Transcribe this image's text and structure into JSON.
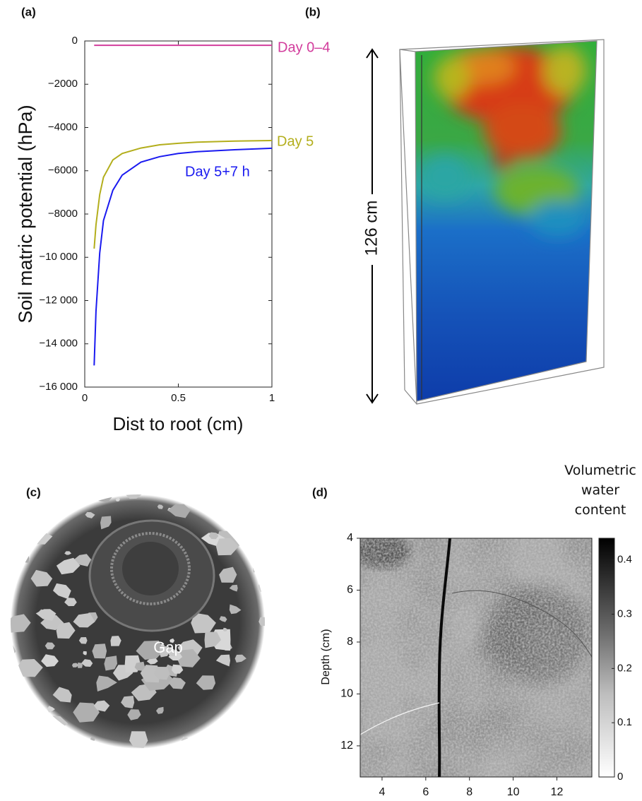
{
  "panel_labels": [
    "(a)",
    "(b)",
    "(c)",
    "(d)"
  ],
  "chart_data": [
    {
      "type": "line",
      "xlabel": "Dist to root (cm)",
      "ylabel": "Soil matric potential (hPa)",
      "xlim": [
        0,
        1
      ],
      "ylim": [
        -16000,
        0
      ],
      "xticks": [
        0,
        0.5,
        1
      ],
      "yticks": [
        0,
        {
          "value": -2000,
          "label": "−2000"
        },
        {
          "value": -4000,
          "label": "−4000"
        },
        {
          "value": -6000,
          "label": "−6000"
        },
        {
          "value": -8000,
          "label": "−8000"
        },
        {
          "value": -10000,
          "label": "−10 000"
        },
        {
          "value": -12000,
          "label": "−12 000"
        },
        {
          "value": -14000,
          "label": "−14 000"
        },
        {
          "value": -16000,
          "label": "−16 000"
        }
      ],
      "x": [
        0.05,
        0.06,
        0.08,
        0.1,
        0.15,
        0.2,
        0.3,
        0.4,
        0.5,
        0.6,
        0.8,
        1
      ],
      "series": [
        {
          "name": "Day 0–4",
          "color": "#d23c9c",
          "values": [
            -200,
            -200,
            -200,
            -200,
            -200,
            -200,
            -200,
            -200,
            -200,
            -200,
            -200,
            -200
          ]
        },
        {
          "name": "Day 5",
          "color": "#b3ae1c",
          "values": [
            -9600,
            -8500,
            -7100,
            -6300,
            -5500,
            -5200,
            -4950,
            -4800,
            -4730,
            -4680,
            -4630,
            -4600
          ]
        },
        {
          "name": "Day 5+7 h",
          "color": "#1a1af0",
          "values": [
            -15000,
            -12500,
            -9800,
            -8300,
            -6900,
            -6200,
            -5600,
            -5350,
            -5200,
            -5120,
            -5030,
            -4960
          ]
        }
      ]
    },
    {
      "type": "heatmap",
      "ylabel": "Depth (cm)",
      "xlim": [
        3,
        13.6
      ],
      "ylim": [
        4,
        13.2
      ],
      "y_inverted": true,
      "xticks": [
        4,
        6,
        8,
        10,
        12
      ],
      "yticks": [
        4,
        6,
        8,
        10,
        12
      ],
      "colorbar": {
        "title": "Volumetric water content",
        "lim": [
          0,
          0.44
        ],
        "ticks": [
          0,
          0.1,
          0.2,
          0.3,
          0.4
        ]
      }
    }
  ],
  "panel_b": {
    "label": "126 cm"
  },
  "panel_c": {
    "label": "Gap"
  }
}
